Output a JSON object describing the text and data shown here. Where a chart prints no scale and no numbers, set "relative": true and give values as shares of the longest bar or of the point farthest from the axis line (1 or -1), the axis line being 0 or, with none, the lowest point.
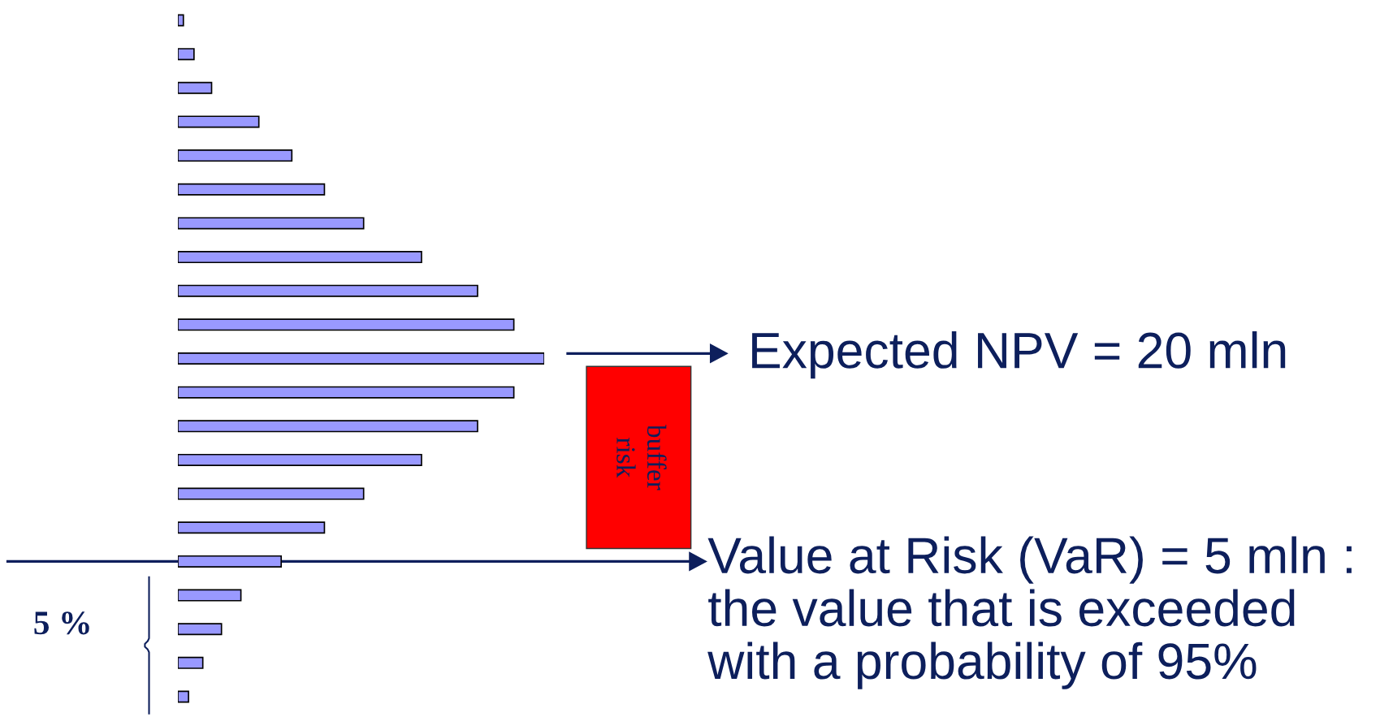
{
  "chart_data": {
    "type": "bar",
    "orientation": "horizontal",
    "relative": true,
    "categories": [
      null,
      null,
      null,
      null,
      null,
      null,
      null,
      null,
      null,
      null,
      null,
      null,
      null,
      null,
      null,
      null,
      null,
      null,
      null,
      null,
      null
    ],
    "values": [
      0.015,
      0.044,
      0.092,
      0.221,
      0.311,
      0.4,
      0.507,
      0.665,
      0.818,
      0.917,
      1,
      0.917,
      0.818,
      0.665,
      0.507,
      0.4,
      0.282,
      0.172,
      0.119,
      0.068,
      0.029
    ],
    "color": "#9999ff",
    "annotations": [
      "Expected NPV = 20 mln",
      "Value at Risk (VaR) = 5 mln :\nthe value that is exceeded\nwith a probability of 95%",
      "risk buffer",
      "5 %"
    ]
  }
}
